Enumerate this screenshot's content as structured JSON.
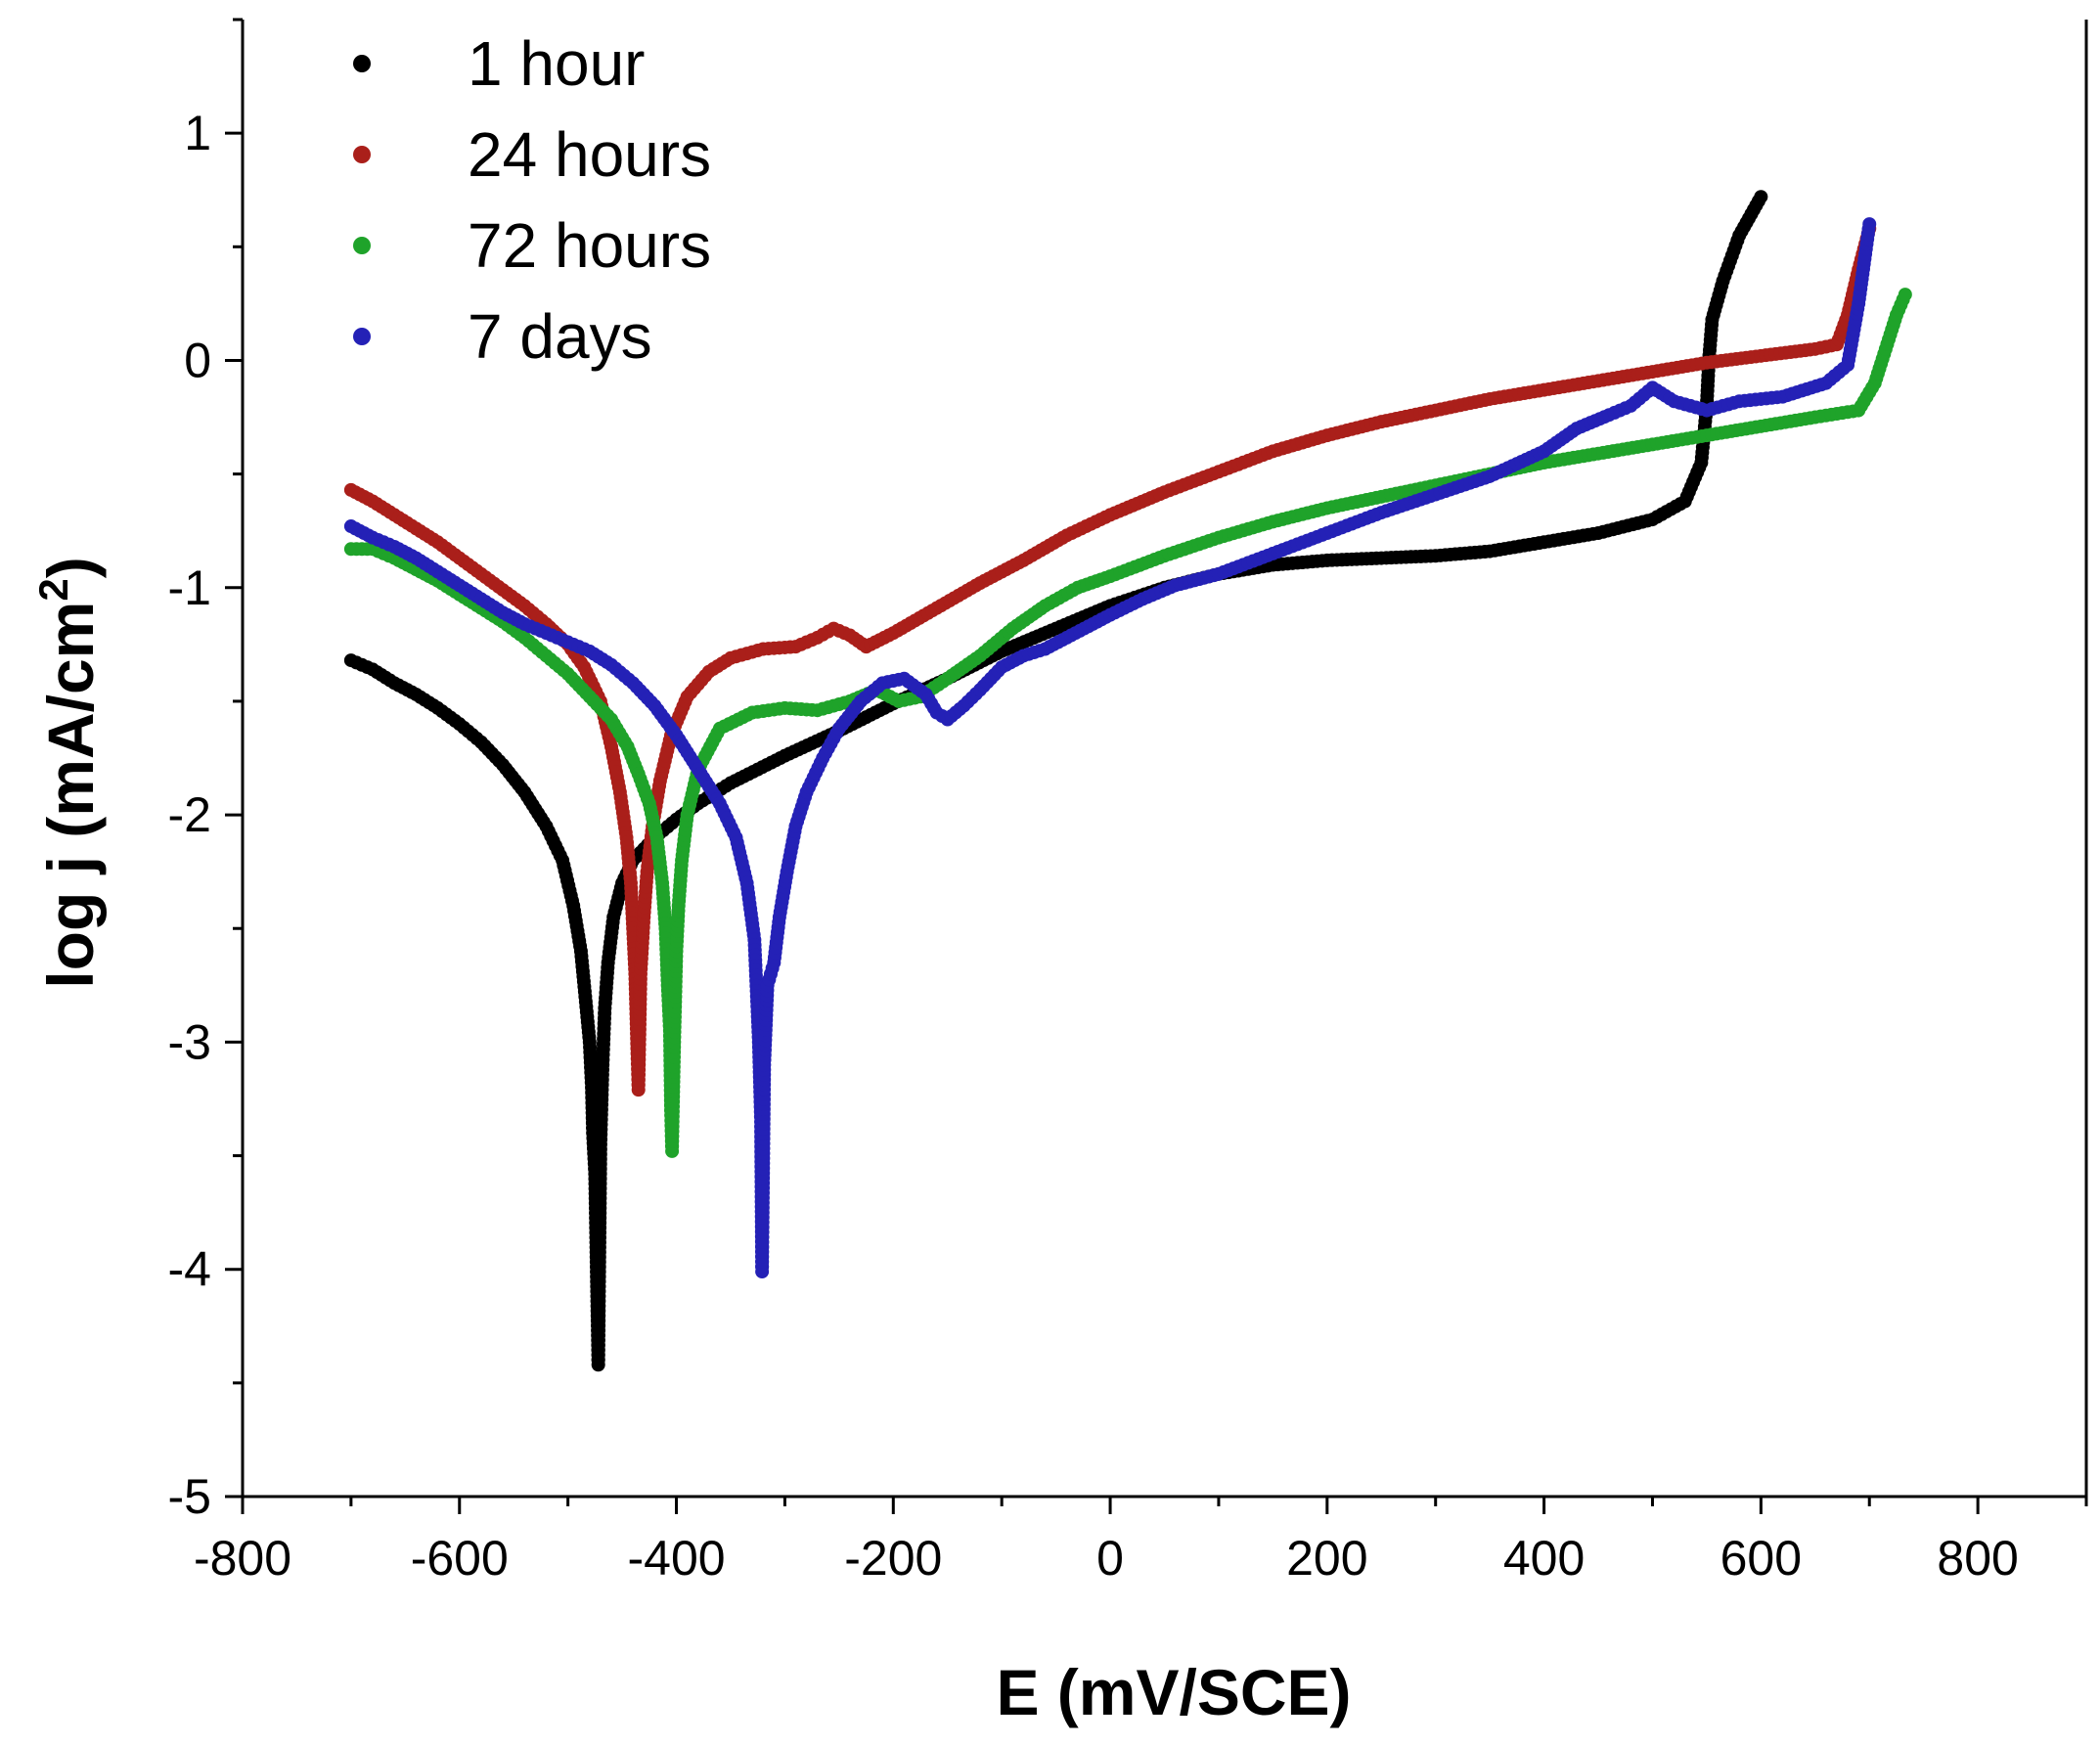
{
  "chart_data": {
    "type": "scatter",
    "title": "",
    "xlabel": "E (mV/SCE)",
    "ylabel_main": "log j (mA/cm",
    "ylabel_sup": "2",
    "ylabel_close": ")",
    "xlim": [
      -800,
      900
    ],
    "ylim": [
      -5,
      1.5
    ],
    "xticks": [
      -800,
      -600,
      -400,
      -200,
      0,
      200,
      400,
      600,
      800
    ],
    "xtick_labels": [
      "-800",
      "-600",
      "-400",
      "-200",
      "0",
      "200",
      "400",
      "600",
      "800"
    ],
    "yticks": [
      1,
      0,
      -1,
      -2,
      -3,
      -4,
      -5
    ],
    "ytick_labels": [
      "1",
      "0",
      "-1",
      "-2",
      "-3",
      "-4",
      "-5"
    ],
    "grid": false,
    "legend_position": "top-left",
    "series": [
      {
        "name": "1 hour",
        "color": "#000000",
        "points": [
          [
            -700,
            -1.32
          ],
          [
            -680,
            -1.36
          ],
          [
            -660,
            -1.42
          ],
          [
            -640,
            -1.47
          ],
          [
            -620,
            -1.53
          ],
          [
            -600,
            -1.6
          ],
          [
            -580,
            -1.68
          ],
          [
            -560,
            -1.78
          ],
          [
            -540,
            -1.9
          ],
          [
            -520,
            -2.05
          ],
          [
            -505,
            -2.2
          ],
          [
            -495,
            -2.4
          ],
          [
            -488,
            -2.6
          ],
          [
            -484,
            -2.8
          ],
          [
            -480,
            -3.0
          ],
          [
            -478,
            -3.2
          ],
          [
            -477,
            -3.4
          ],
          [
            -475,
            -3.58
          ],
          [
            -472,
            -4.42
          ],
          [
            -470,
            -3.45
          ],
          [
            -468,
            -3.1
          ],
          [
            -466,
            -2.85
          ],
          [
            -463,
            -2.65
          ],
          [
            -458,
            -2.45
          ],
          [
            -450,
            -2.3
          ],
          [
            -440,
            -2.2
          ],
          [
            -420,
            -2.1
          ],
          [
            -400,
            -2.02
          ],
          [
            -380,
            -1.95
          ],
          [
            -350,
            -1.86
          ],
          [
            -300,
            -1.74
          ],
          [
            -250,
            -1.63
          ],
          [
            -200,
            -1.51
          ],
          [
            -150,
            -1.4
          ],
          [
            -100,
            -1.28
          ],
          [
            -50,
            -1.18
          ],
          [
            0,
            -1.08
          ],
          [
            50,
            -1.0
          ],
          [
            100,
            -0.94
          ],
          [
            150,
            -0.9
          ],
          [
            200,
            -0.88
          ],
          [
            250,
            -0.87
          ],
          [
            300,
            -0.86
          ],
          [
            350,
            -0.84
          ],
          [
            400,
            -0.8
          ],
          [
            450,
            -0.76
          ],
          [
            500,
            -0.7
          ],
          [
            530,
            -0.62
          ],
          [
            545,
            -0.45
          ],
          [
            550,
            -0.2
          ],
          [
            552,
            0.0
          ],
          [
            555,
            0.18
          ],
          [
            565,
            0.35
          ],
          [
            580,
            0.55
          ],
          [
            600,
            0.72
          ]
        ]
      },
      {
        "name": "24 hours",
        "color": "#aa1f1a",
        "points": [
          [
            -700,
            -0.57
          ],
          [
            -680,
            -0.62
          ],
          [
            -660,
            -0.68
          ],
          [
            -640,
            -0.74
          ],
          [
            -620,
            -0.8
          ],
          [
            -600,
            -0.87
          ],
          [
            -580,
            -0.94
          ],
          [
            -560,
            -1.01
          ],
          [
            -540,
            -1.08
          ],
          [
            -520,
            -1.16
          ],
          [
            -500,
            -1.25
          ],
          [
            -485,
            -1.35
          ],
          [
            -470,
            -1.5
          ],
          [
            -460,
            -1.7
          ],
          [
            -452,
            -1.9
          ],
          [
            -446,
            -2.1
          ],
          [
            -442,
            -2.3
          ],
          [
            -440,
            -2.5
          ],
          [
            -438,
            -2.7
          ],
          [
            -436,
            -3.05
          ],
          [
            -435,
            -3.21
          ],
          [
            -433,
            -2.7
          ],
          [
            -430,
            -2.45
          ],
          [
            -427,
            -2.25
          ],
          [
            -422,
            -2.05
          ],
          [
            -415,
            -1.85
          ],
          [
            -405,
            -1.65
          ],
          [
            -390,
            -1.48
          ],
          [
            -370,
            -1.37
          ],
          [
            -350,
            -1.31
          ],
          [
            -320,
            -1.27
          ],
          [
            -290,
            -1.26
          ],
          [
            -270,
            -1.22
          ],
          [
            -255,
            -1.18
          ],
          [
            -240,
            -1.21
          ],
          [
            -225,
            -1.26
          ],
          [
            -200,
            -1.2
          ],
          [
            -160,
            -1.09
          ],
          [
            -120,
            -0.98
          ],
          [
            -80,
            -0.88
          ],
          [
            -40,
            -0.77
          ],
          [
            0,
            -0.68
          ],
          [
            50,
            -0.58
          ],
          [
            100,
            -0.49
          ],
          [
            150,
            -0.4
          ],
          [
            200,
            -0.33
          ],
          [
            250,
            -0.27
          ],
          [
            300,
            -0.22
          ],
          [
            350,
            -0.17
          ],
          [
            400,
            -0.13
          ],
          [
            450,
            -0.09
          ],
          [
            500,
            -0.05
          ],
          [
            550,
            -0.01
          ],
          [
            600,
            0.02
          ],
          [
            650,
            0.05
          ],
          [
            670,
            0.07
          ],
          [
            680,
            0.2
          ],
          [
            690,
            0.4
          ],
          [
            700,
            0.58
          ]
        ]
      },
      {
        "name": "72 hours",
        "color": "#1fa32a",
        "points": [
          [
            -700,
            -0.83
          ],
          [
            -680,
            -0.83
          ],
          [
            -660,
            -0.87
          ],
          [
            -640,
            -0.92
          ],
          [
            -620,
            -0.97
          ],
          [
            -600,
            -1.03
          ],
          [
            -580,
            -1.09
          ],
          [
            -560,
            -1.15
          ],
          [
            -540,
            -1.22
          ],
          [
            -520,
            -1.3
          ],
          [
            -500,
            -1.38
          ],
          [
            -480,
            -1.48
          ],
          [
            -460,
            -1.58
          ],
          [
            -445,
            -1.7
          ],
          [
            -435,
            -1.82
          ],
          [
            -425,
            -1.95
          ],
          [
            -418,
            -2.1
          ],
          [
            -413,
            -2.3
          ],
          [
            -410,
            -2.5
          ],
          [
            -408,
            -2.75
          ],
          [
            -406,
            -2.95
          ],
          [
            -405,
            -3.3
          ],
          [
            -404,
            -3.48
          ],
          [
            -402,
            -3.0
          ],
          [
            -400,
            -2.6
          ],
          [
            -398,
            -2.4
          ],
          [
            -395,
            -2.2
          ],
          [
            -390,
            -2.0
          ],
          [
            -380,
            -1.8
          ],
          [
            -360,
            -1.62
          ],
          [
            -330,
            -1.55
          ],
          [
            -300,
            -1.53
          ],
          [
            -270,
            -1.54
          ],
          [
            -240,
            -1.5
          ],
          [
            -215,
            -1.45
          ],
          [
            -195,
            -1.5
          ],
          [
            -175,
            -1.48
          ],
          [
            -150,
            -1.4
          ],
          [
            -120,
            -1.3
          ],
          [
            -90,
            -1.18
          ],
          [
            -60,
            -1.08
          ],
          [
            -30,
            -1.0
          ],
          [
            0,
            -0.95
          ],
          [
            50,
            -0.86
          ],
          [
            100,
            -0.78
          ],
          [
            150,
            -0.71
          ],
          [
            200,
            -0.65
          ],
          [
            250,
            -0.6
          ],
          [
            300,
            -0.55
          ],
          [
            350,
            -0.5
          ],
          [
            400,
            -0.45
          ],
          [
            450,
            -0.41
          ],
          [
            500,
            -0.37
          ],
          [
            550,
            -0.33
          ],
          [
            600,
            -0.29
          ],
          [
            650,
            -0.25
          ],
          [
            690,
            -0.22
          ],
          [
            705,
            -0.1
          ],
          [
            715,
            0.05
          ],
          [
            725,
            0.2
          ],
          [
            733,
            0.29
          ]
        ]
      },
      {
        "name": "7 days",
        "color": "#2421b6",
        "points": [
          [
            -700,
            -0.73
          ],
          [
            -680,
            -0.78
          ],
          [
            -660,
            -0.82
          ],
          [
            -640,
            -0.87
          ],
          [
            -620,
            -0.93
          ],
          [
            -600,
            -0.99
          ],
          [
            -580,
            -1.05
          ],
          [
            -560,
            -1.11
          ],
          [
            -540,
            -1.16
          ],
          [
            -520,
            -1.2
          ],
          [
            -500,
            -1.24
          ],
          [
            -480,
            -1.28
          ],
          [
            -460,
            -1.34
          ],
          [
            -440,
            -1.42
          ],
          [
            -420,
            -1.52
          ],
          [
            -400,
            -1.65
          ],
          [
            -380,
            -1.8
          ],
          [
            -360,
            -1.95
          ],
          [
            -345,
            -2.1
          ],
          [
            -335,
            -2.3
          ],
          [
            -328,
            -2.55
          ],
          [
            -324,
            -3.0
          ],
          [
            -322,
            -3.35
          ],
          [
            -321,
            -4.01
          ],
          [
            -319,
            -3.1
          ],
          [
            -316,
            -2.75
          ],
          [
            -310,
            -2.65
          ],
          [
            -305,
            -2.45
          ],
          [
            -298,
            -2.25
          ],
          [
            -290,
            -2.05
          ],
          [
            -280,
            -1.9
          ],
          [
            -265,
            -1.75
          ],
          [
            -250,
            -1.62
          ],
          [
            -230,
            -1.5
          ],
          [
            -210,
            -1.42
          ],
          [
            -190,
            -1.4
          ],
          [
            -170,
            -1.47
          ],
          [
            -160,
            -1.55
          ],
          [
            -150,
            -1.58
          ],
          [
            -135,
            -1.52
          ],
          [
            -120,
            -1.45
          ],
          [
            -100,
            -1.35
          ],
          [
            -80,
            -1.3
          ],
          [
            -60,
            -1.27
          ],
          [
            -40,
            -1.22
          ],
          [
            -20,
            -1.17
          ],
          [
            0,
            -1.12
          ],
          [
            30,
            -1.05
          ],
          [
            60,
            -0.99
          ],
          [
            100,
            -0.94
          ],
          [
            150,
            -0.85
          ],
          [
            200,
            -0.76
          ],
          [
            250,
            -0.67
          ],
          [
            300,
            -0.59
          ],
          [
            350,
            -0.51
          ],
          [
            400,
            -0.4
          ],
          [
            430,
            -0.3
          ],
          [
            460,
            -0.24
          ],
          [
            480,
            -0.2
          ],
          [
            500,
            -0.12
          ],
          [
            520,
            -0.18
          ],
          [
            550,
            -0.22
          ],
          [
            580,
            -0.18
          ],
          [
            620,
            -0.16
          ],
          [
            660,
            -0.1
          ],
          [
            680,
            -0.02
          ],
          [
            690,
            0.25
          ],
          [
            700,
            0.6
          ]
        ]
      }
    ]
  }
}
